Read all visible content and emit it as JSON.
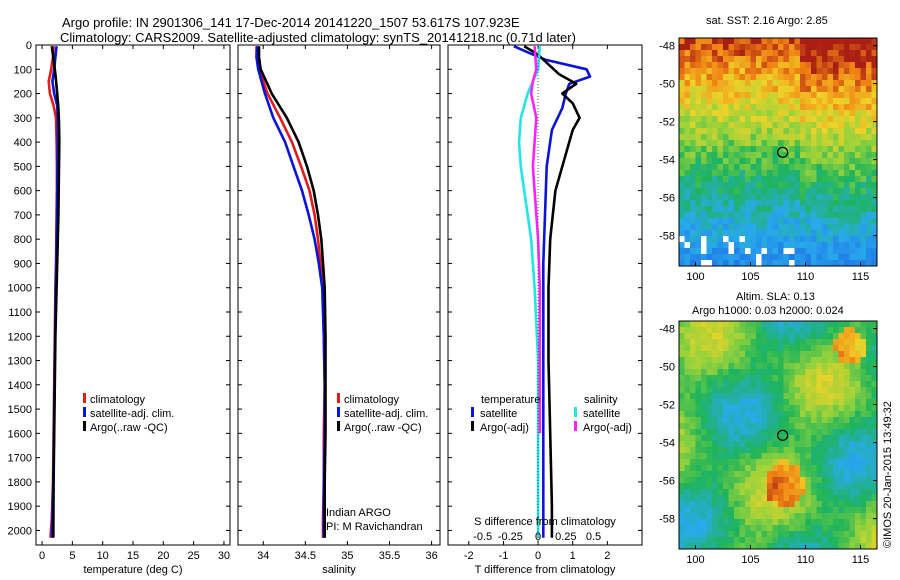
{
  "title_lines": [
    "Argo profile: IN 2901306_141 17-Dec-2014 20141220_1507 53.617S 107.923E",
    "Climatology: CARS2009. Satellite-adjusted climatology: synTS_20141218.nc (0.71d later)"
  ],
  "colors": {
    "climatology": "#e41a1c",
    "satellite": "#0a14d6",
    "argo": "#000000",
    "satellite_salinity": "#22e5e5",
    "argo_salinity_adj": "#ff22ff"
  },
  "legend_profiles": [
    {
      "key": "climatology",
      "label": "climatology"
    },
    {
      "key": "satellite",
      "label": "satellite-adj. clim."
    },
    {
      "key": "argo",
      "label": "Argo(..raw -QC)"
    }
  ],
  "legend_diff": {
    "temperature_header": "temperature",
    "salinity_header": "salinity",
    "temperature_items": [
      {
        "key": "satellite",
        "label": "satellite"
      },
      {
        "key": "argo",
        "label": "Argo(-adj)"
      }
    ],
    "salinity_items": [
      {
        "key": "satellite_salinity",
        "label": "satellite"
      },
      {
        "key": "argo_salinity_adj",
        "label": "Argo(-adj)"
      }
    ]
  },
  "credit": {
    "line1": "Indian ARGO",
    "line2": "PI: M Ravichandran"
  },
  "stamp": "©IMOS 20-Jan-2015 13:49:32",
  "map_top_title": "sat. SST: 2.16 Argo: 2.85",
  "map_bottom_title_lines": [
    "Altim. SLA: 0.13",
    "Argo h1000: 0.03 h2000: 0.024"
  ],
  "chart_data": [
    {
      "type": "line",
      "xlabel": "temperature (deg C)",
      "ylabel": "",
      "xlim": [
        -1,
        31
      ],
      "ylim": [
        2060,
        0
      ],
      "xticks": [
        0,
        5,
        10,
        15,
        20,
        25,
        30
      ],
      "yticks": [
        0,
        100,
        200,
        300,
        400,
        500,
        600,
        700,
        800,
        900,
        1000,
        1100,
        1200,
        1300,
        1400,
        1500,
        1600,
        1700,
        1800,
        1900,
        2000
      ],
      "series": [
        {
          "name": "climatology",
          "color_key": "climatology",
          "x": [
            1.9,
            1.8,
            1.5,
            1.1,
            1.3,
            1.9,
            2.3,
            2.4,
            2.45,
            2.45,
            2.4,
            2.35,
            2.3,
            2.2,
            2.1,
            2.0,
            1.9,
            1.8,
            1.6,
            1.4
          ],
          "y": [
            5,
            50,
            100,
            150,
            200,
            250,
            300,
            400,
            500,
            600,
            700,
            800,
            900,
            1000,
            1200,
            1400,
            1600,
            1800,
            1950,
            2030
          ]
        },
        {
          "name": "satellite-adj. clim.",
          "color_key": "satellite",
          "x": [
            2.4,
            2.2,
            2.0,
            1.7,
            2.0,
            2.5,
            2.6,
            2.6,
            2.55,
            2.5,
            2.45,
            2.4,
            2.35,
            2.25,
            2.15,
            2.05,
            1.95,
            1.85,
            1.7,
            1.6
          ],
          "y": [
            5,
            50,
            100,
            150,
            200,
            250,
            300,
            400,
            500,
            600,
            700,
            800,
            900,
            1000,
            1200,
            1400,
            1600,
            1800,
            1950,
            2030
          ]
        },
        {
          "name": "Argo(..raw -QC)",
          "color_key": "argo",
          "x": [
            1.6,
            1.9,
            2.2,
            2.5,
            2.7,
            2.8,
            2.85,
            2.8,
            2.75,
            2.7,
            2.6,
            2.5,
            2.4,
            2.2,
            2.1,
            2.0,
            1.9,
            1.85
          ],
          "y": [
            5,
            60,
            120,
            200,
            260,
            320,
            400,
            500,
            600,
            700,
            800,
            900,
            1000,
            1200,
            1400,
            1600,
            1800,
            2030
          ]
        }
      ]
    },
    {
      "type": "line",
      "xlabel": "salinity",
      "ylabel": "",
      "xlim": [
        33.7,
        36.1
      ],
      "ylim": [
        2060,
        0
      ],
      "xticks": [
        34,
        34.5,
        35,
        35.5,
        36
      ],
      "series": [
        {
          "name": "climatology",
          "color_key": "climatology",
          "x": [
            33.92,
            33.92,
            33.95,
            34.05,
            34.2,
            34.34,
            34.45,
            34.55,
            34.61,
            34.65,
            34.68,
            34.71,
            34.72,
            34.73,
            34.72,
            34.72,
            34.71,
            34.71
          ],
          "y": [
            5,
            50,
            100,
            200,
            300,
            400,
            500,
            600,
            700,
            800,
            900,
            1000,
            1200,
            1400,
            1600,
            1800,
            1950,
            2030
          ]
        },
        {
          "name": "satellite-adj. clim.",
          "color_key": "satellite",
          "x": [
            33.93,
            33.92,
            33.94,
            34.02,
            34.12,
            34.26,
            34.36,
            34.46,
            34.54,
            34.61,
            34.66,
            34.7,
            34.72,
            34.73,
            34.73,
            34.72,
            34.72,
            34.72
          ],
          "y": [
            5,
            50,
            100,
            200,
            300,
            400,
            500,
            600,
            700,
            800,
            900,
            1000,
            1200,
            1400,
            1600,
            1800,
            1950,
            2030
          ]
        },
        {
          "name": "Argo(..raw -QC)",
          "color_key": "argo",
          "x": [
            33.95,
            33.95,
            33.97,
            34.1,
            34.28,
            34.42,
            34.52,
            34.6,
            34.65,
            34.69,
            34.71,
            34.73,
            34.74,
            34.74,
            34.74,
            34.73,
            34.73
          ],
          "y": [
            5,
            50,
            100,
            200,
            300,
            400,
            500,
            600,
            700,
            800,
            900,
            1000,
            1200,
            1400,
            1600,
            1800,
            2030
          ]
        }
      ]
    },
    {
      "type": "line",
      "xlabel": "T difference from climatology",
      "secondary_xlabel": "S difference from climatology",
      "xlim": [
        -2.6,
        3.0
      ],
      "ylim": [
        2060,
        0
      ],
      "xticks": [
        -2,
        -1,
        0,
        1,
        2
      ],
      "secondary_xticks": [
        {
          "label": "-0.5",
          "t_position": -1.6
        },
        {
          "label": "-0.25",
          "t_position": -0.8
        },
        {
          "label": "0",
          "t_position": 0
        },
        {
          "label": "0.25",
          "t_position": 0.8
        },
        {
          "label": "0.5",
          "t_position": 1.6
        }
      ],
      "series": [
        {
          "name": "temperature satellite",
          "color_key": "satellite",
          "x": [
            -0.7,
            -0.3,
            0.2,
            1.4,
            1.5,
            0.9,
            0.8,
            0.7,
            0.4,
            0.25,
            0.2,
            0.15,
            0.15,
            0.15,
            0.15,
            0.15,
            0.15
          ],
          "y": [
            5,
            30,
            60,
            100,
            130,
            160,
            200,
            260,
            350,
            500,
            700,
            900,
            1200,
            1500,
            1800,
            1950,
            2030
          ]
        },
        {
          "name": "temperature Argo(-adj)",
          "color_key": "argo",
          "x": [
            -0.4,
            0.0,
            0.3,
            0.6,
            1.1,
            0.7,
            1.0,
            1.2,
            1.0,
            0.8,
            0.5,
            0.35,
            0.3,
            0.3,
            0.35,
            0.4,
            0.4
          ],
          "y": [
            5,
            40,
            80,
            120,
            160,
            200,
            240,
            300,
            350,
            450,
            600,
            800,
            1000,
            1300,
            1600,
            1900,
            2030
          ]
        },
        {
          "name": "salinity satellite",
          "color_key": "satellite_salinity",
          "x": [
            0.05,
            0.0,
            -0.3,
            -0.5,
            -0.55,
            -0.5,
            -0.4,
            -0.2,
            -0.1,
            0.0,
            0.0,
            0.0,
            0.0
          ],
          "y": [
            5,
            100,
            200,
            300,
            400,
            500,
            600,
            800,
            1000,
            1300,
            1600,
            1900,
            2030
          ]
        },
        {
          "name": "salinity Argo(-adj)",
          "color_key": "argo_salinity_adj",
          "x": [
            -0.1,
            -0.05,
            -0.15,
            -0.2,
            -0.05,
            -0.1,
            -0.15,
            -0.1,
            0.0,
            0.05,
            0.05,
            0.05
          ],
          "y": [
            5,
            100,
            150,
            200,
            300,
            400,
            500,
            600,
            800,
            1000,
            1300,
            1600
          ]
        }
      ]
    },
    {
      "type": "heatmap",
      "title": "sat. SST: 2.16 Argo: 2.85",
      "xticks": [
        100,
        105,
        110,
        115
      ],
      "yticks": [
        -48,
        -50,
        -52,
        -54,
        -56,
        -58
      ],
      "xlim": [
        98.5,
        116.5
      ],
      "ylim": [
        -59.6,
        -47.6
      ],
      "marker": {
        "lon": 107.923,
        "lat": -53.617
      }
    },
    {
      "type": "heatmap",
      "title": "Altim. SLA: 0.13",
      "xticks": [
        100,
        105,
        110,
        115
      ],
      "yticks": [
        -48,
        -50,
        -52,
        -54,
        -56,
        -58
      ],
      "xlim": [
        98.5,
        116.5
      ],
      "ylim": [
        -59.6,
        -47.6
      ],
      "marker": {
        "lon": 107.923,
        "lat": -53.617
      }
    }
  ]
}
